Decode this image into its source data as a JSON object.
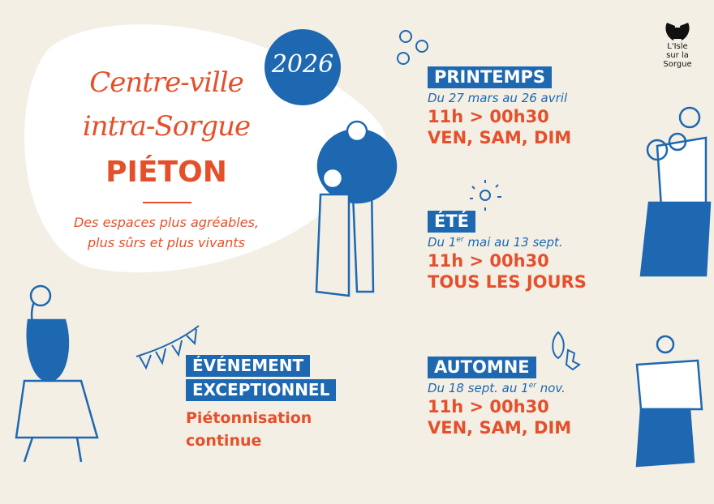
{
  "colors": {
    "background": "#f3efe5",
    "blue": "#1d68b1",
    "orange": "#e5502b"
  },
  "year": "2026",
  "logo": {
    "line1": "L'Isle",
    "line2": "sur la",
    "line3": "Sorgue"
  },
  "hero": {
    "line1": "Centre-ville",
    "line2": "intra-Sorgue",
    "line3": "PIÉTON",
    "subtitle1": "Des espaces plus agréables,",
    "subtitle2": "plus sûrs et plus vivants"
  },
  "seasons": [
    {
      "name": "PRINTEMPS",
      "date": "Du 27 mars au 26 avril",
      "hours": "11h > 00h30",
      "days": "VEN, SAM, DIM"
    },
    {
      "name": "ÉTÉ",
      "date_pre": "Du 1",
      "date_sup": "er",
      "date_post": " mai au 13 sept.",
      "hours": "11h > 00h30",
      "days": "TOUS LES JOURS"
    },
    {
      "name": "AUTOMNE",
      "date_pre": "Du 18 sept. au 1",
      "date_sup": "er",
      "date_post": " nov.",
      "hours": "11h > 00h30",
      "days": "VEN, SAM, DIM"
    }
  ],
  "event": {
    "line1": "ÉVÉNEMENT",
    "line2": "EXCEPTIONNEL",
    "desc1": "Piétonnisation",
    "desc2": "continue"
  }
}
